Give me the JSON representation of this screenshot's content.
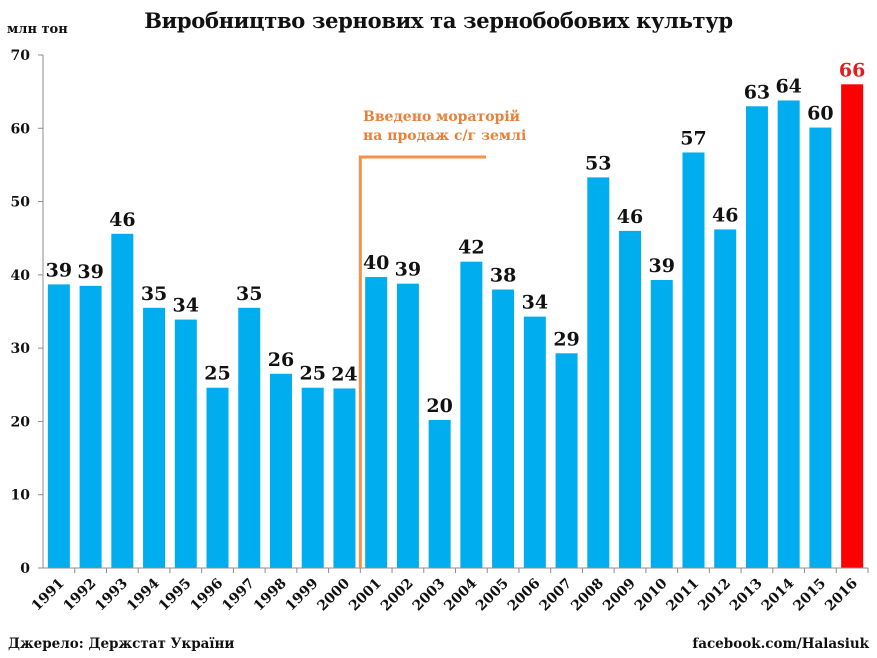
{
  "chart_data": {
    "type": "bar",
    "title": "Виробництво зернових та зернобобових культур",
    "ylabel": "млн тон",
    "xlabel": "",
    "ylim": [
      0,
      70
    ],
    "yticks": [
      0,
      10,
      20,
      30,
      40,
      50,
      60,
      70
    ],
    "grid": false,
    "categories": [
      "1991",
      "1992",
      "1993",
      "1994",
      "1995",
      "1996",
      "1997",
      "1998",
      "1999",
      "2000",
      "2001",
      "2002",
      "2003",
      "2004",
      "2005",
      "2006",
      "2007",
      "2008",
      "2009",
      "2010",
      "2011",
      "2012",
      "2013",
      "2014",
      "2015",
      "2016"
    ],
    "values": [
      38.7,
      38.5,
      45.6,
      35.5,
      33.9,
      24.6,
      35.5,
      26.5,
      24.6,
      24.5,
      39.7,
      38.8,
      20.2,
      41.8,
      38.0,
      34.3,
      29.3,
      53.3,
      46.0,
      39.3,
      56.7,
      46.2,
      63.0,
      63.8,
      60.1,
      66.0
    ],
    "labels": [
      "39",
      "39",
      "46",
      "35",
      "34",
      "25",
      "35",
      "26",
      "25",
      "24",
      "40",
      "39",
      "20",
      "42",
      "38",
      "34",
      "29",
      "53",
      "46",
      "39",
      "57",
      "46",
      "63",
      "64",
      "60",
      "66"
    ],
    "highlight_index": 25,
    "colors": {
      "bar": "#00aeef",
      "highlight": "#ff0000",
      "highlight_label": "#e31b1b",
      "annotation": "#f0924a",
      "axis": "#8c8c8c",
      "text": "#111111"
    },
    "annotation": {
      "lines": [
        "Введено мораторій",
        "на продаж с/г землі"
      ],
      "marker_between": [
        "2000",
        "2001"
      ]
    }
  },
  "footer": {
    "source": "Джерело: Держстат України",
    "credit": "facebook.com/Halasiuk"
  }
}
